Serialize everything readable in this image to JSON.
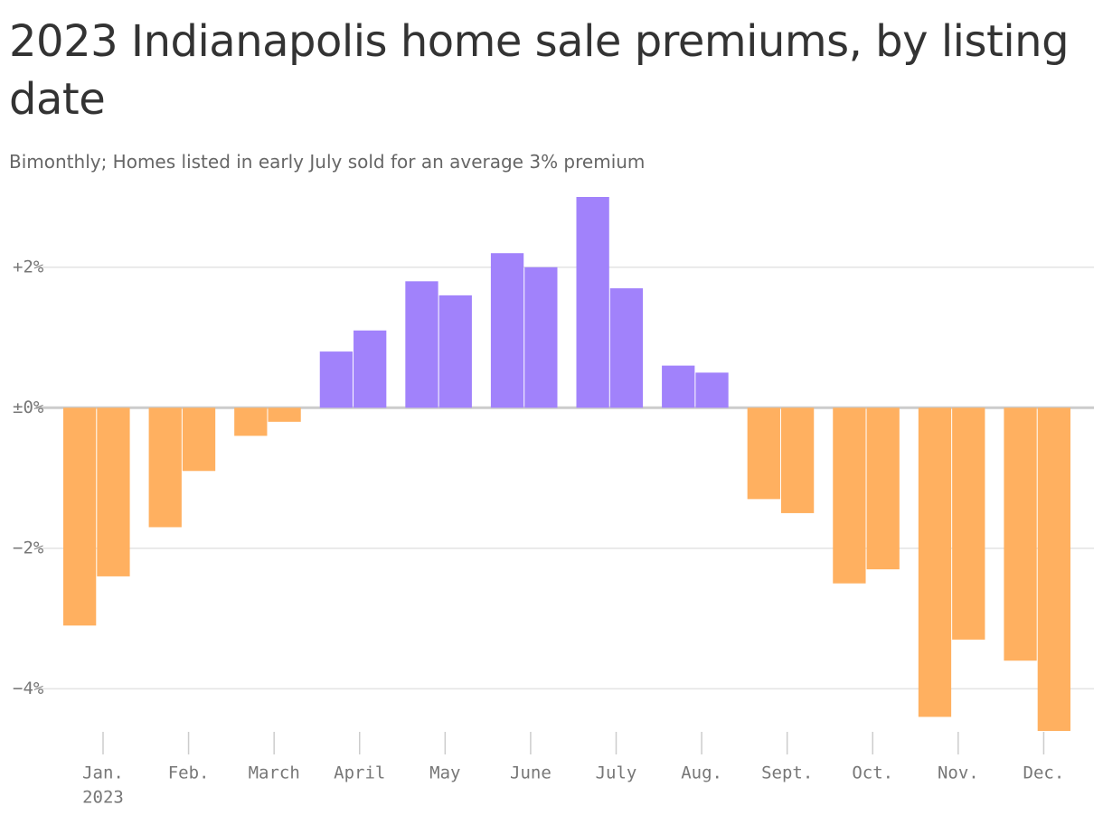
{
  "chart_data": {
    "type": "bar",
    "title": "2023 Indianapolis home sale premiums, by listing date",
    "subtitle": "Bimonthly; Homes listed in early July sold for an average 3% premium",
    "categories": [
      null,
      null,
      null,
      null,
      null,
      null,
      null,
      null,
      null,
      null,
      null,
      null,
      null,
      null,
      null,
      null,
      null,
      null,
      null,
      null,
      null,
      null,
      null,
      null
    ],
    "values": [
      -3.1,
      -2.4,
      -1.7,
      -0.9,
      -0.4,
      -0.2,
      0.8,
      1.1,
      1.8,
      1.6,
      2.2,
      2.0,
      3.0,
      1.7,
      0.6,
      0.5,
      -1.3,
      -1.5,
      -2.5,
      -2.3,
      -4.4,
      -3.3,
      -3.6,
      -4.6
    ],
    "month_labels": [
      "Jan.",
      "Feb.",
      "March",
      "April",
      "May",
      "June",
      "July",
      "Aug.",
      "Sept.",
      "Oct.",
      "Nov.",
      "Dec."
    ],
    "year_label": "2023",
    "positive_color": "#a182fb",
    "negative_color": "#ffb060",
    "ylim": [
      -4.6,
      3.0
    ],
    "yticks": [
      {
        "value": 2,
        "label": "+2%"
      },
      {
        "value": 0,
        "label": "±0%"
      },
      {
        "value": -2,
        "label": "−2%"
      },
      {
        "value": -4,
        "label": "−4%"
      }
    ],
    "grid": true
  }
}
